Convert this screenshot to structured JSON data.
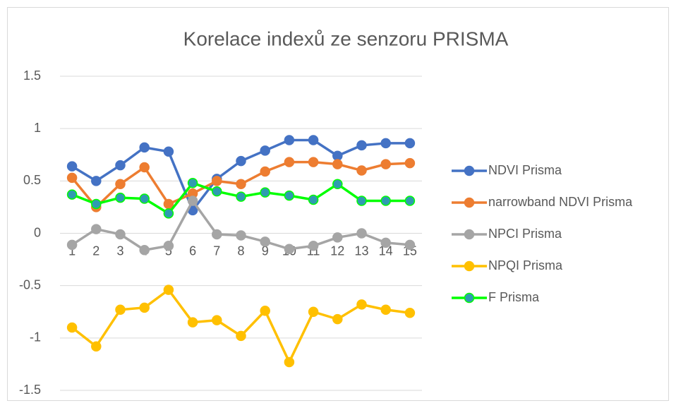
{
  "chart_data": {
    "type": "line",
    "title": "Korelace indexů ze senzoru PRISMA",
    "categories": [
      1,
      2,
      3,
      4,
      5,
      6,
      7,
      8,
      9,
      10,
      11,
      12,
      13,
      14,
      15
    ],
    "series": [
      {
        "name": "NDVI Prisma",
        "color": "#4472c4",
        "values": [
          0.64,
          0.5,
          0.65,
          0.82,
          0.78,
          0.22,
          0.52,
          0.69,
          0.79,
          0.89,
          0.89,
          0.74,
          0.84,
          0.86,
          0.86
        ]
      },
      {
        "name": "narrowband NDVI Prisma",
        "color": "#ed7d31",
        "values": [
          0.53,
          0.25,
          0.47,
          0.63,
          0.28,
          0.38,
          0.5,
          0.47,
          0.59,
          0.68,
          0.68,
          0.66,
          0.6,
          0.66,
          0.67
        ]
      },
      {
        "name": "NPCI Prisma",
        "color": "#a5a5a5",
        "values": [
          -0.11,
          0.04,
          -0.01,
          -0.16,
          -0.12,
          0.31,
          -0.01,
          -0.02,
          -0.08,
          -0.15,
          -0.12,
          -0.04,
          0.0,
          -0.09,
          -0.11
        ]
      },
      {
        "name": "NPQI Prisma",
        "color": "#ffc000",
        "values": [
          -0.9,
          -1.08,
          -0.73,
          -0.71,
          -0.54,
          -0.85,
          -0.83,
          -0.98,
          -0.74,
          -1.23,
          -0.75,
          -0.82,
          -0.68,
          -0.73,
          -0.76
        ]
      },
      {
        "name": "F Prisma",
        "color": "#00ff00",
        "marker_color": "#2f9bb0",
        "values": [
          0.37,
          0.28,
          0.34,
          0.33,
          0.19,
          0.48,
          0.4,
          0.35,
          0.39,
          0.36,
          0.32,
          0.47,
          0.31,
          0.31,
          0.31
        ]
      }
    ],
    "ylim": [
      -1.5,
      1.5
    ],
    "yticks": [
      -1.5,
      -1,
      -0.5,
      0,
      0.5,
      1,
      1.5
    ],
    "grid": true,
    "legend": "right"
  }
}
